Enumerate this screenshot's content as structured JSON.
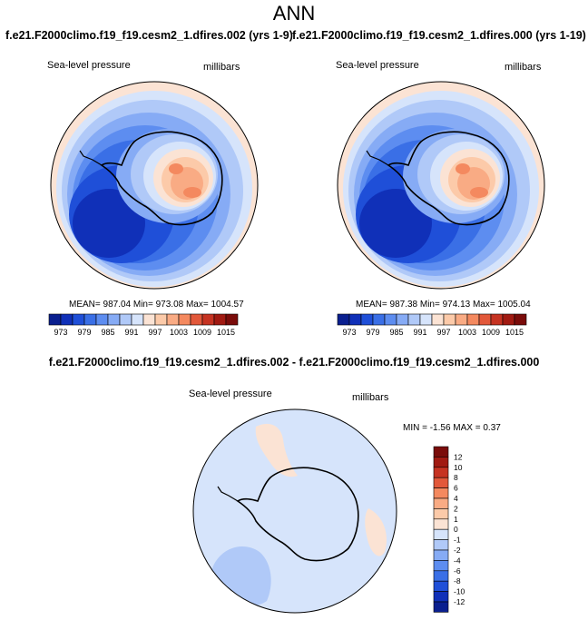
{
  "header": {
    "title": "ANN"
  },
  "panels": [
    {
      "case_title": "f.e21.F2000climo.f19_f19.cesm2_1.dfires.002 (yrs 1-9)",
      "variable": "Sea-level pressure",
      "units": "millibars",
      "stats": "MEAN= 987.04   Min= 973.08   Max= 1004.57"
    },
    {
      "case_title": "f.e21.F2000climo.f19_f19.cesm2_1.dfires.000 (yrs 1-19)",
      "variable": "Sea-level pressure",
      "units": "millibars",
      "stats": "MEAN= 987.38   Min= 974.13   Max= 1005.04"
    }
  ],
  "diff_panel": {
    "title": "f.e21.F2000climo.f19_f19.cesm2_1.dfires.002 - f.e21.F2000climo.f19_f19.cesm2_1.dfires.000",
    "variable": "Sea-level pressure",
    "units": "millibars",
    "stats": "MIN =  -1.56 MAX =   0.37"
  },
  "colorbar_abs": {
    "colors": [
      "#0a1f8f",
      "#1030b8",
      "#1f4fd8",
      "#3a6fe6",
      "#5d8df0",
      "#86abf5",
      "#b0c9f8",
      "#d6e4fb",
      "#fbe3d4",
      "#fccaa9",
      "#f9ab84",
      "#f4895f",
      "#e2583a",
      "#c63322",
      "#a11a12",
      "#7a0c0a"
    ],
    "labels": [
      "973",
      "979",
      "985",
      "991",
      "997",
      "1003",
      "1009",
      "1015"
    ]
  },
  "colorbar_diff": {
    "colors": [
      "#7a0c0a",
      "#a11a12",
      "#c63322",
      "#e2583a",
      "#f4895f",
      "#f9ab84",
      "#fccaa9",
      "#fbe3d4",
      "#d6e4fb",
      "#b0c9f8",
      "#86abf5",
      "#5d8df0",
      "#3a6fe6",
      "#1f4fd8",
      "#1030b8",
      "#0a1f8f"
    ],
    "labels": [
      "12",
      "10",
      "8",
      "6",
      "4",
      "2",
      "1",
      "0",
      "-1",
      "-2",
      "-4",
      "-6",
      "-8",
      "-10",
      "-12"
    ]
  }
}
